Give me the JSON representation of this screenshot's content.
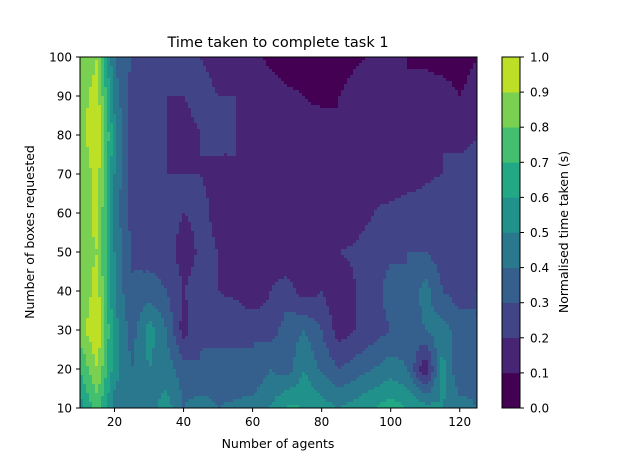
{
  "chart_data": {
    "type": "heatmap",
    "subtype": "filled-contour",
    "title": "Time taken to complete task 1",
    "xlabel": "Number of agents",
    "ylabel": "Number of boxes requested",
    "colorbar_label": "Normalised time taken (s)",
    "colormap": "viridis",
    "x_ticks": [
      20,
      40,
      60,
      80,
      100,
      120
    ],
    "x_tick_labels": [
      "20",
      "40",
      "60",
      "80",
      "100",
      "120"
    ],
    "y_ticks": [
      10,
      20,
      30,
      40,
      50,
      60,
      70,
      80,
      90,
      100
    ],
    "y_tick_labels": [
      "10",
      "20",
      "30",
      "40",
      "50",
      "60",
      "70",
      "80",
      "90",
      "100"
    ],
    "xlim": [
      10,
      125
    ],
    "ylim": [
      10,
      100
    ],
    "levels": [
      0.0,
      0.1,
      0.2,
      0.3,
      0.4,
      0.5,
      0.6,
      0.7,
      0.8,
      0.9,
      1.0
    ],
    "level_labels": [
      "0.0",
      "0.1",
      "0.2",
      "0.3",
      "0.4",
      "0.5",
      "0.6",
      "0.7",
      "0.8",
      "0.9",
      "1.0"
    ],
    "level_colors": [
      "#440154",
      "#482475",
      "#414487",
      "#355f8d",
      "#2a788e",
      "#21918c",
      "#22a884",
      "#44bf70",
      "#7ad151",
      "#bddf26",
      "#fde725"
    ],
    "x": [
      10,
      15,
      20,
      25,
      30,
      35,
      40,
      45,
      50,
      55,
      60,
      65,
      70,
      75,
      80,
      85,
      90,
      95,
      100,
      105,
      110,
      115,
      120,
      125
    ],
    "y": [
      10,
      20,
      30,
      40,
      50,
      60,
      70,
      80,
      90,
      100
    ],
    "z": [
      [
        0.55,
        0.75,
        0.45,
        0.4,
        0.45,
        0.55,
        0.4,
        0.45,
        0.4,
        0.42,
        0.45,
        0.5,
        0.62,
        0.6,
        0.55,
        0.5,
        0.55,
        0.6,
        0.65,
        0.6,
        0.55,
        0.5,
        0.45,
        0.4
      ],
      [
        0.7,
        0.9,
        0.55,
        0.4,
        0.5,
        0.45,
        0.35,
        0.3,
        0.35,
        0.32,
        0.3,
        0.4,
        0.35,
        0.5,
        0.38,
        0.3,
        0.35,
        0.4,
        0.45,
        0.4,
        0.1,
        0.55,
        0.3,
        0.35
      ],
      [
        0.85,
        1.0,
        0.55,
        0.35,
        0.55,
        0.4,
        0.15,
        0.3,
        0.25,
        0.28,
        0.3,
        0.25,
        0.35,
        0.4,
        0.3,
        0.15,
        0.2,
        0.25,
        0.3,
        0.35,
        0.4,
        0.45,
        0.35,
        0.3
      ],
      [
        0.8,
        0.95,
        0.5,
        0.3,
        0.35,
        0.3,
        0.2,
        0.25,
        0.2,
        0.18,
        0.1,
        0.2,
        0.25,
        0.15,
        0.2,
        0.12,
        0.2,
        0.25,
        0.35,
        0.3,
        0.45,
        0.3,
        0.25,
        0.3
      ],
      [
        0.85,
        0.9,
        0.5,
        0.3,
        0.25,
        0.25,
        0.15,
        0.22,
        0.2,
        0.1,
        0.1,
        0.15,
        0.12,
        0.1,
        0.18,
        0.2,
        0.22,
        0.25,
        0.28,
        0.3,
        0.3,
        0.25,
        0.25,
        0.25
      ],
      [
        0.8,
        0.95,
        0.45,
        0.25,
        0.25,
        0.25,
        0.2,
        0.22,
        0.18,
        0.15,
        0.12,
        0.1,
        0.15,
        0.12,
        0.2,
        0.1,
        0.15,
        0.2,
        0.22,
        0.25,
        0.25,
        0.28,
        0.3,
        0.28
      ],
      [
        0.8,
        0.95,
        0.5,
        0.25,
        0.22,
        0.2,
        0.2,
        0.2,
        0.18,
        0.2,
        0.18,
        0.15,
        0.15,
        0.12,
        0.1,
        0.15,
        0.2,
        0.18,
        0.15,
        0.15,
        0.18,
        0.2,
        0.25,
        0.25
      ],
      [
        0.85,
        1.0,
        0.55,
        0.25,
        0.25,
        0.2,
        0.18,
        0.2,
        0.22,
        0.2,
        0.2,
        0.12,
        0.1,
        0.12,
        0.15,
        0.1,
        0.12,
        0.15,
        0.15,
        0.12,
        0.15,
        0.2,
        0.15,
        0.2
      ],
      [
        0.85,
        0.95,
        0.45,
        0.25,
        0.25,
        0.2,
        0.2,
        0.22,
        0.2,
        0.2,
        0.18,
        0.15,
        0.12,
        0.1,
        0.08,
        0.1,
        0.15,
        0.15,
        0.12,
        0.1,
        0.15,
        0.15,
        0.1,
        0.15
      ],
      [
        0.8,
        0.9,
        0.4,
        0.3,
        0.25,
        0.25,
        0.2,
        0.2,
        0.18,
        0.15,
        0.12,
        0.08,
        0.05,
        0.05,
        0.05,
        0.05,
        0.08,
        0.12,
        0.15,
        0.1,
        0.08,
        0.05,
        0.05,
        0.1
      ]
    ]
  }
}
